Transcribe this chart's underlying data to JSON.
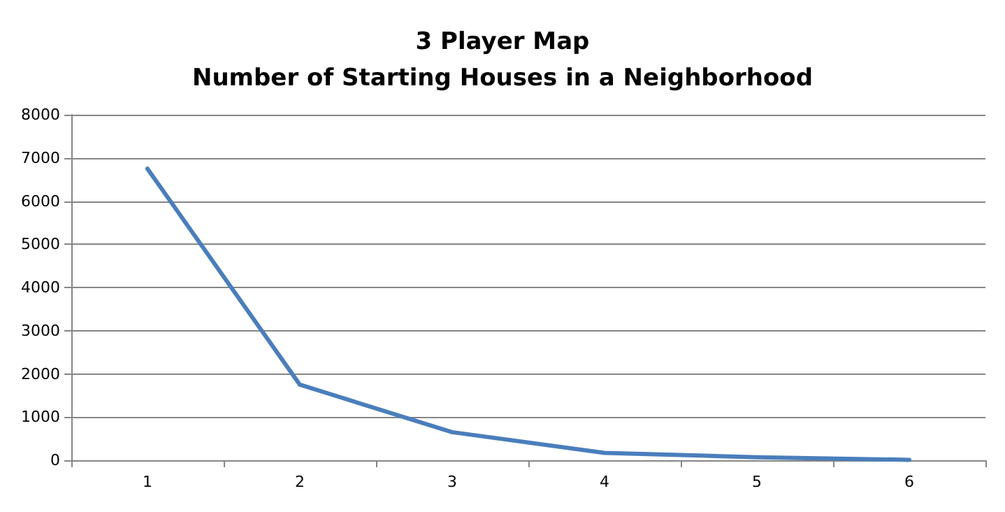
{
  "chart_data": {
    "type": "line",
    "title": "3 Player Map\nNumber of Starting Houses in a Neighborhood",
    "categories": [
      "1",
      "2",
      "3",
      "4",
      "5",
      "6"
    ],
    "series": [
      {
        "color": "#4a7ebb",
        "values": [
          6750,
          1750,
          650,
          170,
          70,
          10
        ]
      }
    ],
    "ylim": [
      0,
      8000
    ],
    "yticks": [
      0,
      1000,
      2000,
      3000,
      4000,
      5000,
      6000,
      7000,
      8000
    ],
    "grid": "y",
    "marker": "none",
    "line_style": "solid"
  }
}
